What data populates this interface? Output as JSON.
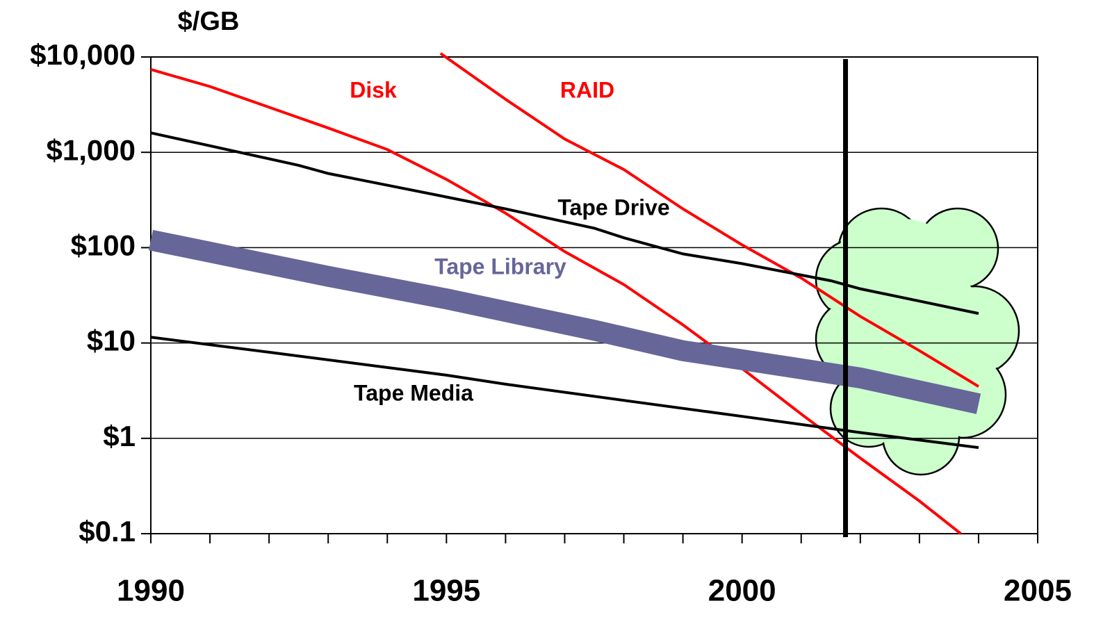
{
  "chart_data": {
    "type": "line",
    "y_label": "$/GB",
    "log_y": true,
    "grid": true,
    "xlim": [
      1990,
      2005
    ],
    "ylim": [
      0.1,
      10000
    ],
    "xticks": [
      1990,
      1995,
      2000,
      2005
    ],
    "xminorticks": [
      1991,
      1992,
      1993,
      1994,
      1996,
      1997,
      1998,
      1999,
      2001,
      2002,
      2003,
      2004
    ],
    "yticks": [
      {
        "value": 0.1,
        "label": "$0.1"
      },
      {
        "value": 1,
        "label": "$1"
      },
      {
        "value": 10,
        "label": "$10"
      },
      {
        "value": 100,
        "label": "$100"
      },
      {
        "value": 1000,
        "label": "$1,000"
      },
      {
        "value": 10000,
        "label": "$10,000"
      }
    ],
    "vline": 2001.75,
    "series": [
      {
        "name": "Disk",
        "color": "#ff0000",
        "line_width": 4,
        "x": [
          1990,
          1991,
          1993,
          1994,
          1995,
          1996,
          1997,
          1998,
          1999,
          2000,
          2001,
          2002,
          2003,
          2003.7
        ],
        "values": [
          7400,
          4900,
          1800,
          1070,
          520,
          230,
          91,
          41,
          15.5,
          5.4,
          1.8,
          0.62,
          0.22,
          0.1
        ]
      },
      {
        "name": "RAID",
        "color": "#ff0000",
        "line_width": 4,
        "x": [
          1994.9,
          1996,
          1997,
          1998,
          1999,
          2000,
          2001,
          2002,
          2003,
          2004
        ],
        "values": [
          10900,
          3600,
          1380,
          660,
          255,
          107,
          48,
          19,
          8.3,
          3.5
        ]
      },
      {
        "name": "Tape Drive",
        "color": "#000000",
        "line_width": 4,
        "x": [
          1990,
          1991,
          1992.5,
          1993,
          1995,
          1996,
          1997.5,
          1998,
          1999,
          2000,
          2001.5,
          2002,
          2003,
          2004
        ],
        "values": [
          1600,
          1170,
          730,
          600,
          340,
          255,
          160,
          127,
          86,
          68,
          45,
          37,
          27.5,
          20.4
        ]
      },
      {
        "name": "Tape Library",
        "color": "#666699",
        "line_width": 30,
        "x": [
          1990,
          1993,
          1995,
          1997.5,
          1999,
          2002,
          2004
        ],
        "values": [
          120,
          50,
          29,
          13.6,
          8.3,
          4.3,
          2.3
        ]
      },
      {
        "name": "Tape Media",
        "color": "#000000",
        "line_width": 4,
        "x": [
          1990,
          1992,
          1995,
          1996,
          1998,
          2000,
          2002,
          2004
        ],
        "values": [
          11.5,
          8,
          4.6,
          3.7,
          2.5,
          1.7,
          1.15,
          0.8
        ]
      }
    ]
  }
}
